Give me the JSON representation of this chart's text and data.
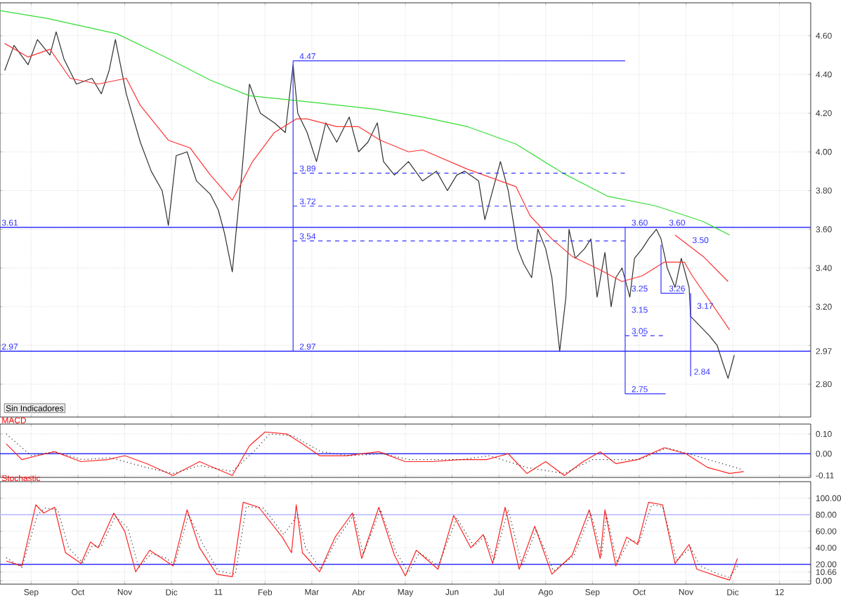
{
  "chart_data": [
    {
      "type": "line",
      "xlim": [
        "2010-08-11",
        "2012-01-21"
      ],
      "tick_labels": "y",
      "grid": true,
      "xticks": [
        {
          "value": "2010-09-01",
          "label": null
        },
        {
          "value": "2010-10-01",
          "label": null
        },
        {
          "value": "2010-11-01",
          "label": null
        },
        {
          "value": "2010-12-01",
          "label": null
        },
        {
          "value": "2011-01-01",
          "label": null
        },
        {
          "value": "2011-02-01",
          "label": null
        },
        {
          "value": "2011-03-01",
          "label": null
        },
        {
          "value": "2011-04-01",
          "label": null
        },
        {
          "value": "2011-05-01",
          "label": null
        },
        {
          "value": "2011-06-01",
          "label": null
        },
        {
          "value": "2011-07-01",
          "label": null
        },
        {
          "value": "2011-08-01",
          "label": null
        },
        {
          "value": "2011-09-01",
          "label": null
        },
        {
          "value": "2011-10-01",
          "label": null
        },
        {
          "value": "2011-11-01",
          "label": null
        },
        {
          "value": "2011-12-01",
          "label": null
        },
        {
          "value": "2012-01-01",
          "label": null
        }
      ],
      "ylim": [
        2.63,
        4.77
      ],
      "yticks": [
        {
          "value": 2.8,
          "label": "2.80"
        },
        {
          "value": 2.97,
          "label": "2.97"
        },
        {
          "value": 3.0,
          "label": null
        },
        {
          "value": 3.2,
          "label": "3.20"
        },
        {
          "value": 3.4,
          "label": "3.40"
        },
        {
          "value": 3.6,
          "label": "3.60"
        },
        {
          "value": 3.8,
          "label": "3.80"
        },
        {
          "value": 4.0,
          "label": "4.00"
        },
        {
          "value": 4.2,
          "label": "4.20"
        },
        {
          "value": 4.4,
          "label": "4.40"
        },
        {
          "value": 4.6,
          "label": "4.60"
        }
      ],
      "series": [
        {
          "color": "#303030",
          "x": [
            "2010-08-14",
            "2010-08-20",
            "2010-08-29",
            "2010-09-05",
            "2010-09-13",
            "2010-09-17",
            "2010-09-22",
            "2010-09-30",
            "2010-10-10",
            "2010-10-16",
            "2010-10-21",
            "2010-10-25",
            "2010-11-02",
            "2010-11-11",
            "2010-11-18",
            "2010-11-25",
            "2010-11-29",
            "2010-12-04",
            "2010-12-11",
            "2010-12-17",
            "2010-12-26",
            "2010-12-31",
            "2011-01-05",
            "2011-01-10",
            "2011-01-12",
            "2011-01-16",
            "2011-01-21",
            "2011-01-28",
            "2011-02-07",
            "2011-02-14",
            "2011-02-19",
            "2011-02-22",
            "2011-02-28",
            "2011-03-04",
            "2011-03-10",
            "2011-03-17",
            "2011-03-25",
            "2011-04-01",
            "2011-04-07",
            "2011-04-13",
            "2011-04-17",
            "2011-04-24",
            "2011-05-03",
            "2011-05-12",
            "2011-05-21",
            "2011-05-28",
            "2011-06-04",
            "2011-06-09",
            "2011-06-18",
            "2011-06-22",
            "2011-06-27",
            "2011-07-02",
            "2011-07-07",
            "2011-07-13",
            "2011-07-17",
            "2011-07-22",
            "2011-07-26",
            "2011-07-31",
            "2011-08-05",
            "2011-08-10",
            "2011-08-14",
            "2011-08-16",
            "2011-08-20",
            "2011-08-26",
            "2011-08-30",
            "2011-09-04",
            "2011-09-09",
            "2011-09-13",
            "2011-09-16",
            "2011-09-20",
            "2011-09-25",
            "2011-09-28",
            "2011-10-03",
            "2011-10-07",
            "2011-10-12",
            "2011-10-15",
            "2011-10-19",
            "2011-10-24",
            "2011-10-28",
            "2011-11-03",
            "2011-11-04",
            "2011-11-10",
            "2011-11-16",
            "2011-11-21",
            "2011-11-25",
            "2011-11-28",
            "2011-12-02"
          ],
          "values": [
            4.42,
            4.55,
            4.45,
            4.58,
            4.5,
            4.62,
            4.48,
            4.35,
            4.38,
            4.3,
            4.42,
            4.58,
            4.3,
            4.05,
            3.9,
            3.8,
            3.62,
            3.98,
            4.0,
            3.85,
            3.78,
            3.7,
            3.58,
            3.38,
            3.55,
            3.88,
            4.35,
            4.2,
            4.15,
            4.1,
            4.45,
            4.2,
            4.1,
            3.95,
            4.15,
            4.05,
            4.18,
            4.0,
            4.05,
            4.15,
            3.95,
            3.88,
            3.95,
            3.85,
            3.9,
            3.8,
            3.88,
            3.9,
            3.85,
            3.65,
            3.8,
            3.95,
            3.8,
            3.5,
            3.42,
            3.35,
            3.6,
            3.5,
            3.35,
            2.97,
            3.25,
            3.6,
            3.45,
            3.5,
            3.55,
            3.25,
            3.48,
            3.2,
            3.35,
            3.4,
            3.25,
            3.45,
            3.5,
            3.55,
            3.6,
            3.55,
            3.4,
            3.3,
            3.45,
            3.3,
            3.15,
            3.1,
            3.05,
            3.0,
            2.9,
            2.83,
            2.95
          ]
        },
        {
          "color": "#ff3333",
          "x": [
            "2010-08-14",
            "2010-08-29",
            "2010-09-13",
            "2010-09-26",
            "2010-10-14",
            "2010-11-02",
            "2010-11-11",
            "2010-11-29",
            "2010-12-13",
            "2010-12-26",
            "2011-01-10",
            "2011-01-23",
            "2011-02-07",
            "2011-02-21",
            "2011-02-28",
            "2011-03-17",
            "2011-04-01",
            "2011-04-15",
            "2011-05-03",
            "2011-05-12",
            "2011-06-11",
            "2011-07-12",
            "2011-07-21",
            "2011-08-05",
            "2011-08-18",
            "2011-09-06",
            "2011-09-20",
            "2011-10-03",
            "2011-10-17",
            "2011-10-30",
            "2011-11-05",
            "2011-11-18",
            "2011-11-29"
          ],
          "values": [
            4.56,
            4.49,
            4.53,
            4.38,
            4.35,
            4.38,
            4.24,
            4.06,
            4.02,
            3.88,
            3.75,
            3.95,
            4.1,
            4.17,
            4.17,
            4.13,
            4.13,
            4.06,
            4.0,
            4.01,
            3.91,
            3.82,
            3.67,
            3.55,
            3.46,
            3.39,
            3.33,
            3.36,
            3.43,
            3.43,
            3.36,
            3.21,
            3.08
          ]
        },
        {
          "color": "#ff3333",
          "x": [
            "2011-10-24",
            "2011-11-12",
            "2011-11-28"
          ],
          "values": [
            3.57,
            3.46,
            3.33
          ]
        },
        {
          "color": "#33dd33",
          "x": [
            "2010-08-11",
            "2010-09-11",
            "2010-10-26",
            "2010-11-27",
            "2010-12-26",
            "2011-01-21",
            "2011-02-27",
            "2011-04-12",
            "2011-05-12",
            "2011-06-11",
            "2011-07-12",
            "2011-08-12",
            "2011-09-11",
            "2011-10-12",
            "2011-11-12",
            "2011-11-29"
          ],
          "values": [
            4.73,
            4.69,
            4.61,
            4.49,
            4.37,
            4.29,
            4.26,
            4.22,
            4.18,
            4.13,
            4.04,
            3.89,
            3.77,
            3.72,
            3.64,
            3.57
          ]
        },
        {
          "color": "#3333ff",
          "x": [
            "2011-02-19",
            "2011-09-22"
          ],
          "values": [
            4.47,
            4.47
          ]
        },
        {
          "color": "#3333ff",
          "x": [
            "2011-02-19",
            "2011-02-19"
          ],
          "values": [
            4.47,
            2.97
          ]
        },
        {
          "color": "#3333ff",
          "line_style": "dashed",
          "x": [
            "2011-02-19",
            "2011-09-22"
          ],
          "values": [
            3.89,
            3.89
          ]
        },
        {
          "color": "#3333ff",
          "line_style": "dashed",
          "x": [
            "2011-02-19",
            "2011-09-22"
          ],
          "values": [
            3.72,
            3.72
          ]
        },
        {
          "color": "#3333ff",
          "line_style": "dashed",
          "x": [
            "2011-02-19",
            "2011-09-22"
          ],
          "values": [
            3.54,
            3.54
          ]
        },
        {
          "color": "#3333ff",
          "x": [
            "2011-09-22",
            "2011-09-22"
          ],
          "values": [
            3.61,
            2.75
          ]
        },
        {
          "color": "#3333ff",
          "x": [
            "2011-09-22",
            "2011-10-18"
          ],
          "values": [
            2.75,
            2.75
          ]
        },
        {
          "color": "#3333ff",
          "line_style": "dashed",
          "x": [
            "2011-09-22",
            "2011-10-18"
          ],
          "values": [
            3.05,
            3.05
          ]
        },
        {
          "color": "#3333ff",
          "x": [
            "2011-10-15",
            "2011-10-15",
            "2011-10-30"
          ],
          "values": [
            3.52,
            3.27,
            3.27
          ]
        },
        {
          "color": "#3333ff",
          "x": [
            "2011-11-04",
            "2011-11-04"
          ],
          "values": [
            3.27,
            2.84
          ]
        }
      ],
      "ref_lines": [
        {
          "axis": "y",
          "value": 3.61,
          "label": "3.61",
          "color": "#3333ff"
        },
        {
          "axis": "y",
          "value": 2.97,
          "label": "2.97",
          "color": "#3333ff"
        }
      ],
      "annotations": [
        "Sin Indicadores",
        {
          "text": "4.47",
          "x": "2011-02-22",
          "y": 4.47
        },
        {
          "text": "3.89",
          "x": "2011-02-22",
          "y": 3.89
        },
        {
          "text": "3.72",
          "x": "2011-02-22",
          "y": 3.72
        },
        {
          "text": "3.54",
          "x": "2011-02-22",
          "y": 3.54
        },
        {
          "text": "2.97",
          "x": "2011-02-22",
          "y": 2.97
        },
        {
          "text": "3.60",
          "x": "2011-09-25",
          "y": 3.61
        },
        {
          "text": "3.60",
          "x": "2011-10-19",
          "y": 3.61
        },
        {
          "text": "3.50",
          "x": "2011-11-04",
          "y": 3.52
        },
        {
          "text": "3.25",
          "x": "2011-09-25",
          "y": 3.27
        },
        {
          "text": "3.26",
          "x": "2011-10-19",
          "y": 3.27
        },
        {
          "text": "3.17",
          "x": "2011-11-07",
          "y": 3.18
        },
        {
          "text": "3.15",
          "x": "2011-09-25",
          "y": 3.16
        },
        {
          "text": "3.05",
          "x": "2011-09-25",
          "y": 3.05
        },
        {
          "text": "2.84",
          "x": "2011-11-05",
          "y": 2.84
        },
        {
          "text": "2.75",
          "x": "2011-09-25",
          "y": 2.75
        }
      ]
    },
    {
      "type": "line",
      "title": "MACD",
      "xlim": [
        "2010-08-11",
        "2012-01-21"
      ],
      "tick_labels": "y",
      "grid": true,
      "xticks": [
        {
          "value": "2010-09-01",
          "label": null
        },
        {
          "value": "2010-10-01",
          "label": null
        },
        {
          "value": "2010-11-01",
          "label": null
        },
        {
          "value": "2010-12-01",
          "label": null
        },
        {
          "value": "2011-01-01",
          "label": null
        },
        {
          "value": "2011-02-01",
          "label": null
        },
        {
          "value": "2011-03-01",
          "label": null
        },
        {
          "value": "2011-04-01",
          "label": null
        },
        {
          "value": "2011-05-01",
          "label": null
        },
        {
          "value": "2011-06-01",
          "label": null
        },
        {
          "value": "2011-07-01",
          "label": null
        },
        {
          "value": "2011-08-01",
          "label": null
        },
        {
          "value": "2011-09-01",
          "label": null
        },
        {
          "value": "2011-10-01",
          "label": null
        },
        {
          "value": "2011-11-01",
          "label": null
        },
        {
          "value": "2011-12-01",
          "label": null
        },
        {
          "value": "2012-01-01",
          "label": null
        }
      ],
      "ylim": [
        -0.12,
        0.15
      ],
      "yticks": [
        {
          "value": -0.11,
          "label": "-0.11"
        },
        {
          "value": 0,
          "label": "0.00"
        },
        {
          "value": 0.1,
          "label": "0.10"
        }
      ],
      "series": [
        {
          "color": "#ff2222",
          "x": [
            "2010-08-15",
            "2010-08-25",
            "2010-09-05",
            "2010-09-16",
            "2010-10-03",
            "2010-10-20",
            "2010-11-01",
            "2010-11-15",
            "2010-12-02",
            "2010-12-19",
            "2011-01-10",
            "2011-01-21",
            "2011-02-01",
            "2011-02-15",
            "2011-02-25",
            "2011-03-06",
            "2011-03-23",
            "2011-04-14",
            "2011-05-01",
            "2011-05-18",
            "2011-06-06",
            "2011-06-23",
            "2011-07-07",
            "2011-07-19",
            "2011-08-01",
            "2011-08-13",
            "2011-08-25",
            "2011-09-06",
            "2011-09-16",
            "2011-09-30",
            "2011-10-17",
            "2011-11-01",
            "2011-11-15",
            "2011-11-29",
            "2011-12-08"
          ],
          "values": [
            0.05,
            -0.03,
            -0.01,
            0.01,
            -0.04,
            -0.03,
            -0.01,
            -0.05,
            -0.11,
            -0.04,
            -0.11,
            0.04,
            0.11,
            0.1,
            0.05,
            -0.01,
            -0.01,
            0.01,
            -0.04,
            -0.04,
            -0.03,
            -0.03,
            0.0,
            -0.1,
            -0.04,
            -0.11,
            -0.04,
            0.01,
            -0.05,
            -0.03,
            0.03,
            0.0,
            -0.07,
            -0.1,
            -0.09
          ]
        },
        {
          "color": "#222222",
          "line_style": "dotted",
          "x": [
            "2010-08-15",
            "2010-09-01",
            "2010-09-16",
            "2010-10-04",
            "2010-10-22",
            "2010-11-15",
            "2010-12-02",
            "2010-12-19",
            "2011-01-10",
            "2011-01-25",
            "2011-02-04",
            "2011-02-19",
            "2011-03-07",
            "2011-03-25",
            "2011-04-16",
            "2011-05-04",
            "2011-06-07",
            "2011-06-25",
            "2011-07-19",
            "2011-08-13",
            "2011-09-01",
            "2011-09-13",
            "2011-10-01",
            "2011-10-19",
            "2011-11-07",
            "2011-12-07"
          ],
          "values": [
            0.1,
            -0.01,
            0.01,
            -0.03,
            -0.02,
            -0.07,
            -0.1,
            -0.06,
            -0.09,
            0.02,
            0.1,
            0.09,
            0.01,
            -0.01,
            0.0,
            -0.03,
            -0.03,
            -0.01,
            -0.07,
            -0.1,
            -0.03,
            -0.03,
            -0.03,
            0.03,
            -0.01,
            -0.08
          ]
        }
      ],
      "ref_lines": [
        {
          "axis": "y",
          "value": 0,
          "color": "#3333ff"
        }
      ]
    },
    {
      "type": "line",
      "title": "Stochastic",
      "xlim": [
        "2010-08-11",
        "2012-01-21"
      ],
      "grid": true,
      "xticks": [
        {
          "value": "2010-09-01",
          "label": "Sep"
        },
        {
          "value": "2010-10-01",
          "label": "Oct"
        },
        {
          "value": "2010-11-01",
          "label": "Nov"
        },
        {
          "value": "2010-12-01",
          "label": "Dic"
        },
        {
          "value": "2011-01-01",
          "label": "11"
        },
        {
          "value": "2011-02-01",
          "label": "Feb"
        },
        {
          "value": "2011-03-01",
          "label": "Mar"
        },
        {
          "value": "2011-04-01",
          "label": "Abr"
        },
        {
          "value": "2011-05-01",
          "label": "May"
        },
        {
          "value": "2011-06-01",
          "label": "Jun"
        },
        {
          "value": "2011-07-01",
          "label": "Jul"
        },
        {
          "value": "2011-08-01",
          "label": "Ago"
        },
        {
          "value": "2011-09-01",
          "label": "Sep"
        },
        {
          "value": "2011-10-01",
          "label": "Oct"
        },
        {
          "value": "2011-11-01",
          "label": "Nov"
        },
        {
          "value": "2011-12-01",
          "label": "Dic"
        },
        {
          "value": "2012-01-01",
          "label": "12"
        }
      ],
      "ylim": [
        -4,
        120
      ],
      "yticks": [
        {
          "value": 0,
          "label": "0.00"
        },
        {
          "value": 10.66,
          "label": "10.66"
        },
        {
          "value": 20,
          "label": "20.00"
        },
        {
          "value": 40,
          "label": "40.00"
        },
        {
          "value": 60,
          "label": "60.00"
        },
        {
          "value": 80,
          "label": "80.00"
        },
        {
          "value": 100,
          "label": "100.00"
        }
      ],
      "series": [
        {
          "color": "#ff2222",
          "x": [
            "2010-08-15",
            "2010-08-25",
            "2010-09-04",
            "2010-09-09",
            "2010-09-16",
            "2010-09-23",
            "2010-10-03",
            "2010-10-09",
            "2010-10-14",
            "2010-10-24",
            "2010-11-01",
            "2010-11-08",
            "2010-11-17",
            "2010-11-25",
            "2010-12-02",
            "2010-12-11",
            "2010-12-19",
            "2010-12-30",
            "2011-01-10",
            "2011-01-17",
            "2011-01-27",
            "2011-02-12",
            "2011-02-18",
            "2011-02-21",
            "2011-02-25",
            "2011-03-06",
            "2011-03-16",
            "2011-03-27",
            "2011-04-03",
            "2011-04-14",
            "2011-04-24",
            "2011-05-01",
            "2011-05-08",
            "2011-05-22",
            "2011-06-02",
            "2011-06-13",
            "2011-06-21",
            "2011-06-27",
            "2011-07-05",
            "2011-07-14",
            "2011-07-24",
            "2011-08-05",
            "2011-08-18",
            "2011-08-29",
            "2011-09-06",
            "2011-09-09",
            "2011-09-16",
            "2011-09-23",
            "2011-09-30",
            "2011-10-07",
            "2011-10-16",
            "2011-10-24",
            "2011-11-03",
            "2011-11-08",
            "2011-11-22",
            "2011-11-29",
            "2011-12-04"
          ],
          "values": [
            24,
            18,
            92,
            82,
            89,
            34,
            21,
            47,
            40,
            82,
            60,
            11,
            37,
            27,
            18,
            86,
            40,
            8,
            5,
            95,
            89,
            53,
            34,
            92,
            34,
            11,
            53,
            82,
            27,
            89,
            31,
            6,
            37,
            14,
            79,
            40,
            56,
            21,
            89,
            14,
            66,
            8,
            31,
            86,
            27,
            86,
            18,
            53,
            44,
            95,
            92,
            21,
            44,
            14,
            5,
            1,
            27
          ]
        },
        {
          "color": "#222222",
          "line_style": "dotted",
          "x": [
            "2010-08-15",
            "2010-08-25",
            "2010-09-05",
            "2010-09-10",
            "2010-09-18",
            "2010-09-25",
            "2010-10-04",
            "2010-10-10",
            "2010-10-16",
            "2010-10-25",
            "2010-11-03",
            "2010-11-10",
            "2010-11-18",
            "2010-11-27",
            "2010-12-03",
            "2010-12-12",
            "2010-12-21",
            "2011-01-01",
            "2011-01-12",
            "2011-01-19",
            "2011-01-30",
            "2011-02-13",
            "2011-02-22",
            "2011-02-27",
            "2011-03-07",
            "2011-03-17",
            "2011-03-28",
            "2011-04-04",
            "2011-04-15",
            "2011-04-25",
            "2011-05-03",
            "2011-05-10",
            "2011-05-22",
            "2011-06-04",
            "2011-06-15",
            "2011-06-22",
            "2011-06-28",
            "2011-07-07",
            "2011-07-16",
            "2011-07-25",
            "2011-08-06",
            "2011-08-19",
            "2011-08-30",
            "2011-09-07",
            "2011-09-10",
            "2011-09-17",
            "2011-09-25",
            "2011-10-01",
            "2011-10-09",
            "2011-10-16",
            "2011-10-25",
            "2011-11-04",
            "2011-11-10",
            "2011-11-22",
            "2011-11-29",
            "2011-12-04"
          ],
          "values": [
            28,
            16,
            80,
            88,
            86,
            40,
            22,
            42,
            42,
            78,
            64,
            16,
            33,
            28,
            20,
            80,
            45,
            12,
            8,
            90,
            88,
            56,
            80,
            40,
            14,
            50,
            80,
            32,
            86,
            35,
            10,
            34,
            18,
            76,
            42,
            54,
            25,
            86,
            18,
            62,
            12,
            30,
            82,
            32,
            80,
            22,
            50,
            46,
            92,
            90,
            25,
            40,
            18,
            8,
            4,
            18
          ]
        }
      ],
      "ref_lines": [
        {
          "axis": "y",
          "value": 20,
          "color": "#3333ff"
        },
        {
          "axis": "y",
          "value": 80,
          "color": "#c0c0ff"
        }
      ]
    }
  ]
}
